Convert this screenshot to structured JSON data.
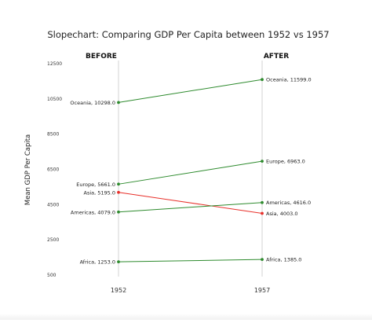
{
  "chart_data": {
    "type": "line",
    "title": "Slopechart: Comparing GDP Per Capita between 1952 vs 1957",
    "ylabel": "Mean GDP Per Capita",
    "xlabel": "",
    "x": [
      "1952",
      "1957"
    ],
    "column_headers": [
      "BEFORE",
      "AFTER"
    ],
    "ylim": [
      500,
      13000
    ],
    "yticks": [
      500,
      2500,
      4500,
      6500,
      8500,
      10500,
      12500
    ],
    "grid": false,
    "legend": "none",
    "series": [
      {
        "label": "Oceania",
        "values": [
          10298.0,
          11599.0
        ],
        "color": "#2e8b2e"
      },
      {
        "label": "Europe",
        "values": [
          5661.0,
          6963.0
        ],
        "color": "#2e8b2e"
      },
      {
        "label": "Asia",
        "values": [
          5195.0,
          4003.0
        ],
        "color": "#e8302a"
      },
      {
        "label": "Americas",
        "values": [
          4079.0,
          4616.0
        ],
        "color": "#2e8b2e"
      },
      {
        "label": "Africa",
        "values": [
          1253.0,
          1385.0
        ],
        "color": "#2e8b2e"
      }
    ]
  },
  "colors": {
    "increase": "#2e8b2e",
    "decrease": "#e8302a",
    "guide_line": "#c8c8c8",
    "text": "#222222"
  }
}
